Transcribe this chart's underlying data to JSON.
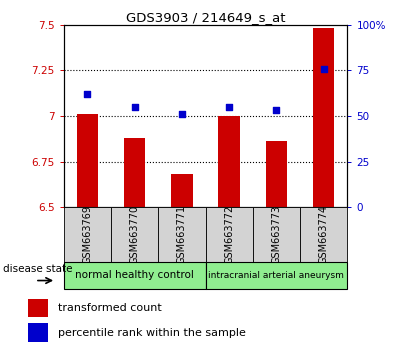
{
  "title": "GDS3903 / 214649_s_at",
  "samples": [
    "GSM663769",
    "GSM663770",
    "GSM663771",
    "GSM663772",
    "GSM663773",
    "GSM663774"
  ],
  "bar_values": [
    7.01,
    6.88,
    6.68,
    7.0,
    6.86,
    7.48
  ],
  "dot_percentile": [
    62,
    55,
    51,
    55,
    53,
    76
  ],
  "bar_color": "#cc0000",
  "dot_color": "#0000cc",
  "ylim_left": [
    6.5,
    7.5
  ],
  "ylim_right": [
    0,
    100
  ],
  "yticks_left": [
    6.5,
    6.75,
    7.0,
    7.25,
    7.5
  ],
  "yticks_right": [
    0,
    25,
    50,
    75,
    100
  ],
  "ytick_labels_left": [
    "6.5",
    "6.75",
    "7",
    "7.25",
    "7.5"
  ],
  "ytick_labels_right": [
    "0",
    "25",
    "50",
    "75",
    "100%"
  ],
  "grid_lines": [
    6.75,
    7.0,
    7.25
  ],
  "group1_label": "normal healthy control",
  "group2_label": "intracranial arterial aneurysm",
  "group_color": "#90ee90",
  "disease_state_label": "disease state",
  "legend_bar_label": "transformed count",
  "legend_dot_label": "percentile rank within the sample",
  "bg_color": "#ffffff",
  "plot_bg_color": "#ffffff",
  "label_area_color": "#d3d3d3",
  "bar_width": 0.45
}
